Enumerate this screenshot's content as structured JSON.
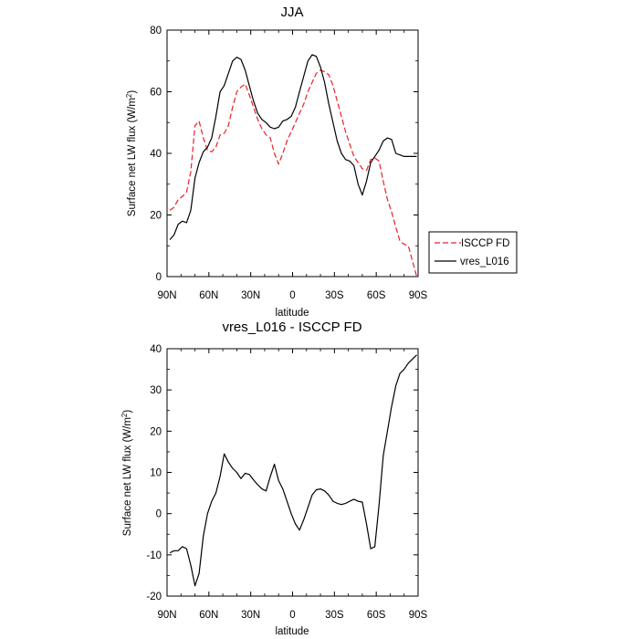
{
  "chart_data": [
    {
      "type": "line",
      "title": "JJA",
      "xlabel": "latitude",
      "ylabel": "Surface net LW flux (W/m",
      "ylabel_sup": "2",
      "ylabel_end": ")",
      "xlim": [
        90,
        -90
      ],
      "ylim": [
        0,
        80
      ],
      "xticks": [
        90,
        60,
        30,
        0,
        -30,
        -60,
        -90
      ],
      "xtick_labels": [
        "90N",
        "60N",
        "30N",
        "0",
        "30S",
        "60S",
        "90S"
      ],
      "yticks": [
        0,
        20,
        40,
        60,
        80
      ],
      "ytick_labels": [
        "0",
        "20",
        "40",
        "60",
        "80"
      ],
      "legend_position": "right",
      "series": [
        {
          "name": "ISCCP FD",
          "color": "#e8202a",
          "style": "dashed",
          "x": [
            88,
            85,
            82,
            79,
            76,
            73,
            70,
            67,
            64,
            61,
            58,
            55,
            52,
            49,
            46,
            43,
            40,
            37,
            34,
            31,
            28,
            25,
            22,
            19,
            16,
            13,
            10,
            7,
            4,
            1,
            -2,
            -5,
            -8,
            -11,
            -14,
            -17,
            -20,
            -23,
            -26,
            -29,
            -32,
            -35,
            -38,
            -41,
            -44,
            -47,
            -50,
            -53,
            -56,
            -59,
            -62,
            -65,
            -68,
            -71,
            -74,
            -77,
            -80,
            -83,
            -86,
            -89
          ],
          "y": [
            21.5,
            22.5,
            25,
            26,
            27.5,
            34,
            49,
            50.5,
            45,
            41,
            40.5,
            42,
            46,
            46.5,
            49,
            55,
            60,
            61.5,
            62.5,
            59,
            55,
            51,
            48,
            46,
            45,
            40,
            36.5,
            40,
            44,
            47,
            50,
            53,
            56,
            60,
            63,
            66,
            67,
            66.5,
            65.5,
            62,
            57,
            52,
            47,
            43,
            39,
            37,
            35,
            34.5,
            38,
            38.5,
            37.5,
            31,
            25,
            21,
            16,
            11.5,
            10.5,
            10,
            5,
            0
          ]
        },
        {
          "name": "vres_L016",
          "color": "#000000",
          "style": "solid",
          "x": [
            88,
            85,
            82,
            79,
            76,
            73,
            70,
            67,
            64,
            61,
            58,
            55,
            52,
            49,
            46,
            43,
            40,
            37,
            34,
            31,
            28,
            25,
            22,
            19,
            16,
            13,
            10,
            7,
            4,
            1,
            -2,
            -5,
            -8,
            -11,
            -14,
            -17,
            -20,
            -23,
            -26,
            -29,
            -32,
            -35,
            -38,
            -41,
            -44,
            -47,
            -50,
            -53,
            -56,
            -59,
            -62,
            -65,
            -68,
            -71,
            -74,
            -77,
            -80,
            -83,
            -86,
            -89
          ],
          "y": [
            12,
            13.5,
            17,
            18,
            17.5,
            21.5,
            32,
            37,
            40.5,
            42,
            45,
            52,
            60,
            62,
            66,
            70,
            71.2,
            70.5,
            67,
            62,
            57,
            53,
            51,
            50,
            48.5,
            48,
            48.5,
            50.5,
            51,
            52,
            55,
            60,
            65,
            70,
            72,
            71.5,
            68,
            63,
            56,
            50,
            44,
            40,
            38,
            37.5,
            36,
            30,
            26.5,
            31,
            37,
            39,
            41,
            44,
            45,
            44.5,
            40,
            39.5,
            39,
            39,
            39,
            39
          ]
        }
      ]
    },
    {
      "type": "line",
      "title": "vres_L016 - ISCCP FD",
      "xlabel": "latitude",
      "ylabel": "Surface net LW flux (W/m",
      "ylabel_sup": "2",
      "ylabel_end": ")",
      "xlim": [
        90,
        -90
      ],
      "ylim": [
        -20,
        40
      ],
      "xticks": [
        90,
        60,
        30,
        0,
        -30,
        -60,
        -90
      ],
      "xtick_labels": [
        "90N",
        "60N",
        "30N",
        "0",
        "30S",
        "60S",
        "90S"
      ],
      "yticks": [
        -20,
        -10,
        0,
        10,
        20,
        30,
        40
      ],
      "ytick_labels": [
        "-20",
        "-10",
        "0",
        "10",
        "20",
        "30",
        "40"
      ],
      "series": [
        {
          "name": "vres_L016 - ISCCP FD",
          "color": "#000000",
          "style": "solid",
          "x": [
            88,
            85,
            82,
            79,
            76,
            73,
            70,
            67,
            64,
            61,
            58,
            55,
            52,
            49,
            46,
            43,
            40,
            37,
            34,
            31,
            28,
            25,
            22,
            19,
            16,
            13,
            10,
            7,
            4,
            1,
            -2,
            -5,
            -8,
            -11,
            -14,
            -17,
            -20,
            -23,
            -26,
            -29,
            -32,
            -35,
            -38,
            -41,
            -44,
            -47,
            -50,
            -53,
            -56,
            -59,
            -62,
            -65,
            -68,
            -71,
            -74,
            -77,
            -80,
            -83,
            -86,
            -89
          ],
          "y": [
            -9.5,
            -9,
            -9,
            -8,
            -8.5,
            -12.5,
            -17.5,
            -14.5,
            -5.5,
            0,
            3,
            5,
            9,
            14.5,
            12.5,
            11,
            10,
            8.5,
            9.8,
            9.5,
            8.2,
            7,
            6,
            5.5,
            9,
            12,
            8,
            6,
            3,
            0,
            -2.5,
            -4,
            -1.5,
            1.5,
            4.5,
            5.8,
            6,
            5.5,
            4.5,
            3,
            2.5,
            2.2,
            2.5,
            3,
            3.5,
            3,
            2.8,
            -2.5,
            -8.5,
            -8,
            2,
            14,
            20,
            26,
            31,
            34,
            35,
            36.5,
            37.5,
            38.5
          ]
        }
      ]
    }
  ]
}
